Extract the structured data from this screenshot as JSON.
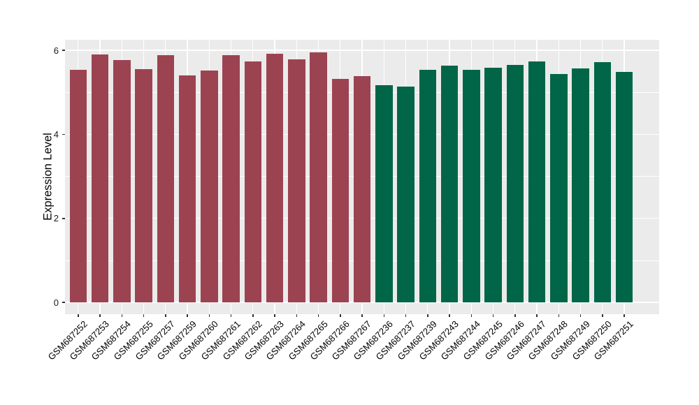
{
  "chart_data": {
    "type": "bar",
    "title": "",
    "xlabel": "",
    "ylabel": "Expression Level",
    "ylim": [
      -0.28,
      6.25
    ],
    "yticks": [
      0,
      2,
      4,
      6
    ],
    "yticks_minor": [
      1,
      3,
      5
    ],
    "legend": "none",
    "panel_background": "#EBEBEB",
    "grid_color": "#FFFFFF",
    "tick_color": "#333333",
    "categories": [
      "GSM687252",
      "GSM687253",
      "GSM687254",
      "GSM687255",
      "GSM687257",
      "GSM687259",
      "GSM687260",
      "GSM687261",
      "GSM687262",
      "GSM687263",
      "GSM687264",
      "GSM687265",
      "GSM687266",
      "GSM687267",
      "GSM687236",
      "GSM687237",
      "GSM687239",
      "GSM687243",
      "GSM687244",
      "GSM687245",
      "GSM687246",
      "GSM687247",
      "GSM687248",
      "GSM687249",
      "GSM687250",
      "GSM687251"
    ],
    "values": [
      5.54,
      5.9,
      5.77,
      5.55,
      5.88,
      5.4,
      5.52,
      5.88,
      5.73,
      5.92,
      5.79,
      5.95,
      5.32,
      5.39,
      5.17,
      5.13,
      5.53,
      5.63,
      5.54,
      5.58,
      5.65,
      5.74,
      5.43,
      5.57,
      5.72,
      5.49
    ],
    "groups": [
      "A",
      "A",
      "A",
      "A",
      "A",
      "A",
      "A",
      "A",
      "A",
      "A",
      "A",
      "A",
      "A",
      "A",
      "B",
      "B",
      "B",
      "B",
      "B",
      "B",
      "B",
      "B",
      "B",
      "B",
      "B",
      "B"
    ],
    "group_colors": {
      "A": "#9C4351",
      "B": "#016647"
    }
  }
}
